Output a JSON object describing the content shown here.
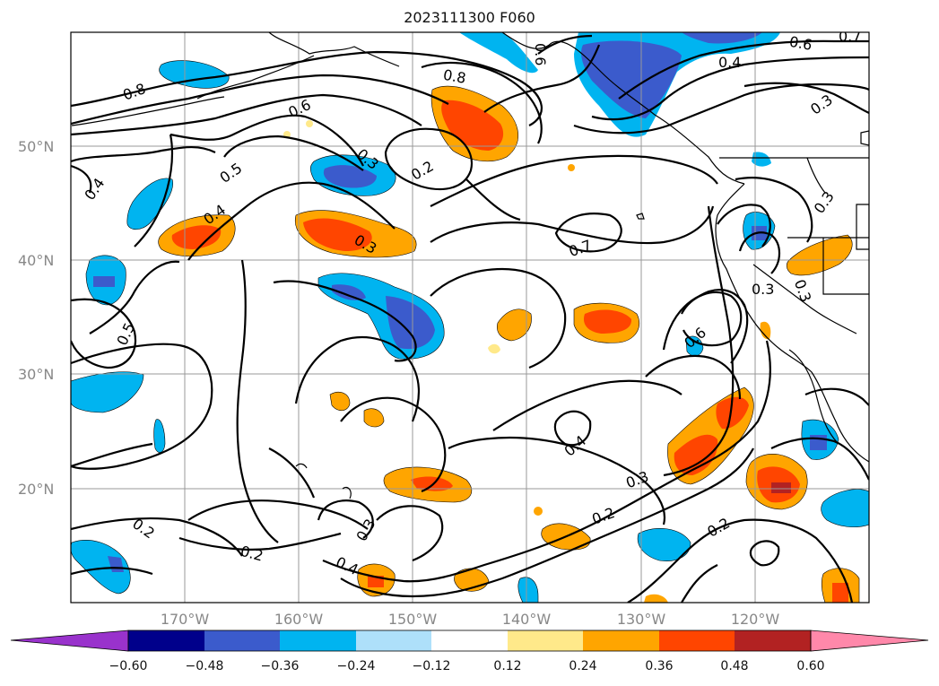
{
  "title": "2023111300 F060",
  "latitude_labels": [
    "20°N",
    "30°N",
    "40°N",
    "50°N"
  ],
  "longitude_labels": [
    "170°W",
    "160°W",
    "150°W",
    "140°W",
    "130°W",
    "120°W"
  ],
  "contour_labels": [
    "0.8",
    "0.6",
    "0.5",
    "0.4",
    "0.4",
    "0.5",
    "0.8",
    "0.3",
    "0.2",
    "0.3",
    "0.7",
    "0.6",
    "0.4",
    "0.3",
    "0.3",
    "0.6",
    "0.3",
    "0.4",
    "0.3",
    "0.2",
    "0.3",
    "0.2",
    "0.2",
    "0.4",
    "0.2",
    "0.3",
    "0.7",
    "0.6"
  ],
  "colorbar": {
    "ticks": [
      "−0.60",
      "−0.48",
      "−0.36",
      "−0.24",
      "−0.12",
      "0.12",
      "0.24",
      "0.36",
      "0.48",
      "0.60"
    ],
    "colors": [
      "#9932cc",
      "#00008b",
      "#3b5bcc",
      "#00b4f0",
      "#aee0fa",
      "#ffffff",
      "#ffe98a",
      "#ffa500",
      "#ff4500",
      "#b22222",
      "#ff88aa"
    ]
  }
}
